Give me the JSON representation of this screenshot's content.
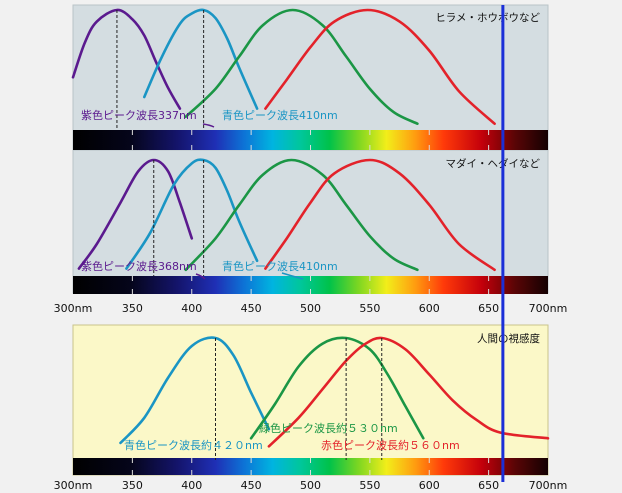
{
  "colors": {
    "page_bg": "#f1f1f1",
    "fish_panel_bg": "#d4dde1",
    "human_panel_bg": "#fbf8c8",
    "violet": "#5b1a8e",
    "blue": "#1a95c4",
    "green": "#1b9645",
    "red": "#e3222a",
    "limit_line": "#1b2fd8",
    "spectrum_bar_border": "#000000"
  },
  "chart_data": [
    {
      "type": "line",
      "title": "ヒラメ・ホウボウなど",
      "xlabel": "",
      "ylabel": "",
      "xlim": [
        300,
        700
      ],
      "ylim": [
        0,
        1
      ],
      "grid": false,
      "x": [
        300,
        320,
        337,
        360,
        380,
        400,
        420,
        440,
        460,
        480,
        500,
        520,
        540,
        560,
        580,
        600,
        620,
        640,
        660
      ],
      "series": [
        {
          "color": "violet",
          "peak": 337,
          "x_from": 300,
          "x_to": 390,
          "x": [
            300,
            310,
            320,
            337,
            350,
            360,
            370,
            380,
            390
          ],
          "values": [
            0.42,
            0.72,
            0.9,
            1.0,
            0.92,
            0.78,
            0.55,
            0.33,
            0.15
          ]
        },
        {
          "color": "blue",
          "peak": 410,
          "x_from": 360,
          "x_to": 455,
          "x": [
            360,
            375,
            390,
            400,
            410,
            420,
            430,
            440,
            455
          ],
          "values": [
            0.25,
            0.6,
            0.88,
            0.97,
            1.0,
            0.93,
            0.75,
            0.5,
            0.15
          ]
        },
        {
          "color": "green",
          "peak": 485,
          "x_from": 395,
          "x_to": 590,
          "x": [
            395,
            420,
            440,
            460,
            485,
            510,
            530,
            550,
            570,
            590
          ],
          "values": [
            0.08,
            0.32,
            0.6,
            0.87,
            1.0,
            0.87,
            0.6,
            0.32,
            0.12,
            0.02
          ]
        },
        {
          "color": "red",
          "peak": 548,
          "x_from": 462,
          "x_to": 655,
          "x": [
            462,
            480,
            500,
            520,
            548,
            575,
            600,
            625,
            655
          ],
          "values": [
            0.15,
            0.4,
            0.68,
            0.9,
            1.0,
            0.9,
            0.65,
            0.3,
            0.02
          ]
        }
      ],
      "peak_markers": [
        337,
        410
      ],
      "annotations": [
        {
          "text": "紫色ピーク波長337nm",
          "color": "violet"
        },
        {
          "text": "青色ピーク波長410nm",
          "color": "blue"
        }
      ]
    },
    {
      "type": "line",
      "title": "マダイ・ヘダイなど",
      "xlabel": "",
      "ylabel": "",
      "xlim": [
        300,
        700
      ],
      "ylim": [
        0,
        1
      ],
      "grid": false,
      "series": [
        {
          "color": "violet",
          "peak": 368,
          "x": [
            305,
            320,
            340,
            355,
            368,
            380,
            390,
            400
          ],
          "values": [
            0.03,
            0.25,
            0.62,
            0.9,
            1.0,
            0.9,
            0.62,
            0.3
          ]
        },
        {
          "color": "blue",
          "peak": 410,
          "x": [
            345,
            365,
            385,
            400,
            410,
            420,
            430,
            440,
            455
          ],
          "values": [
            0.03,
            0.35,
            0.78,
            0.97,
            1.0,
            0.93,
            0.72,
            0.45,
            0.1
          ]
        },
        {
          "color": "green",
          "peak": 484,
          "x": [
            395,
            420,
            440,
            460,
            484,
            510,
            530,
            550,
            570,
            590
          ],
          "values": [
            0.02,
            0.3,
            0.6,
            0.87,
            1.0,
            0.87,
            0.6,
            0.32,
            0.12,
            0.02
          ]
        },
        {
          "color": "red",
          "peak": 550,
          "x": [
            462,
            480,
            500,
            520,
            550,
            575,
            600,
            625,
            655
          ],
          "values": [
            0.03,
            0.3,
            0.62,
            0.88,
            1.0,
            0.88,
            0.6,
            0.25,
            0.02
          ]
        }
      ],
      "peak_markers": [
        368,
        410
      ],
      "annotations": [
        {
          "text": "紫色ピーク波長368nm",
          "color": "violet"
        },
        {
          "text": "青色ピーク波長410nm",
          "color": "blue"
        }
      ]
    },
    {
      "type": "line",
      "title": "人間の視感度",
      "xlabel": "",
      "ylabel": "",
      "xlim": [
        300,
        700
      ],
      "ylim": [
        0,
        1
      ],
      "grid": false,
      "series": [
        {
          "color": "blue",
          "peak": 420,
          "x": [
            340,
            360,
            380,
            400,
            420,
            435,
            450,
            465
          ],
          "values": [
            0.08,
            0.3,
            0.65,
            0.93,
            1.0,
            0.85,
            0.52,
            0.2
          ]
        },
        {
          "color": "green",
          "peak": 530,
          "x": [
            450,
            470,
            490,
            510,
            530,
            550,
            565,
            580,
            595
          ],
          "values": [
            0.12,
            0.42,
            0.75,
            0.95,
            1.0,
            0.9,
            0.68,
            0.4,
            0.12
          ]
        },
        {
          "color": "red",
          "peak": 560,
          "x": [
            465,
            490,
            510,
            530,
            545,
            560,
            580,
            600,
            620,
            640,
            660,
            700
          ],
          "values": [
            0.05,
            0.3,
            0.55,
            0.8,
            0.94,
            1.0,
            0.9,
            0.68,
            0.45,
            0.28,
            0.17,
            0.12
          ]
        }
      ],
      "peak_markers": [
        420,
        530,
        560
      ],
      "annotations": [
        {
          "text": "青色ピーク波長約４２０nm",
          "color": "blue"
        },
        {
          "text": "緑色ピーク波長約５３０nm",
          "color": "green"
        },
        {
          "text": "赤色ピーク波長約５６０nm",
          "color": "red"
        }
      ]
    }
  ],
  "axis_ticks": {
    "labels": [
      "300nm",
      "350",
      "400",
      "450",
      "500",
      "550",
      "600",
      "650",
      "700nm"
    ],
    "values": [
      300,
      350,
      400,
      450,
      500,
      550,
      600,
      650,
      700
    ]
  },
  "limit_line_wavelength": 662
}
